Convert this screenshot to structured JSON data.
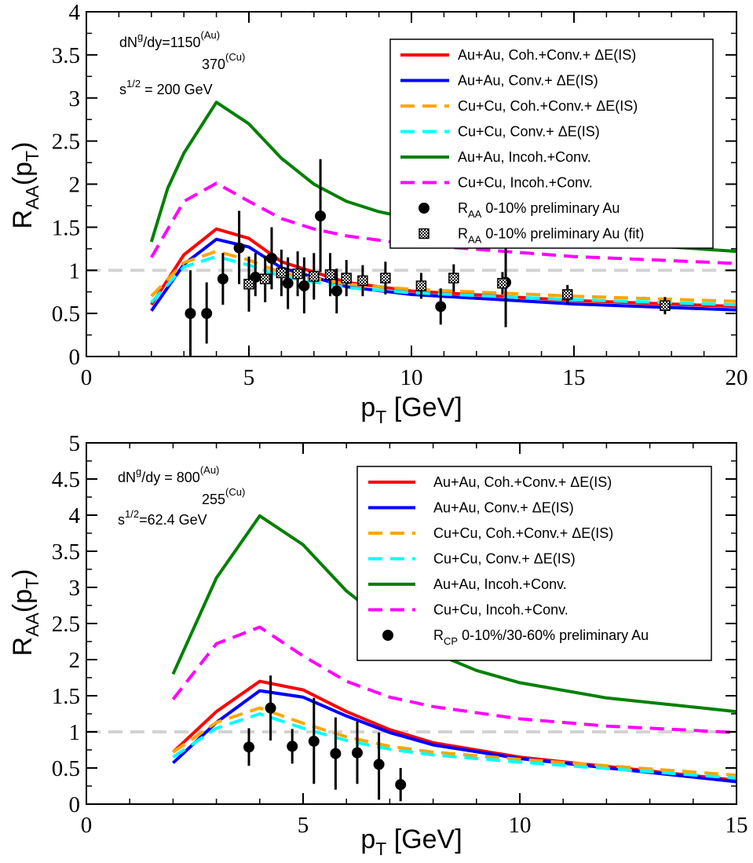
{
  "chart_data": [
    {
      "type": "line",
      "title": "",
      "xlabel": "p_T [GeV]",
      "ylabel": "R_AA(p_T)",
      "xlim": [
        0,
        20
      ],
      "ylim": [
        0,
        4
      ],
      "xticks": [
        "0",
        "5",
        "10",
        "15",
        "20"
      ],
      "yticks": [
        "0",
        "0.5",
        "1",
        "1.5",
        "2",
        "2.5",
        "3",
        "3.5",
        "4"
      ],
      "reference_line": 1,
      "annotations": {
        "dndy_prefix": "dN",
        "dndy_sup": "g",
        "dndy_mid": "/dy=1150",
        "dndy_au": "(Au)",
        "dndy_cu_value": "370",
        "dndy_cu": "(Cu)",
        "energy_prefix": "s",
        "energy_sup": "1/2",
        "energy_suffix": " = 200 GeV"
      },
      "series": [
        {
          "name": "Au+Au, Coh.+Conv.+ ΔE(IS)",
          "color": "#ff0000",
          "dash": "solid",
          "x": [
            2,
            3,
            4,
            5,
            6,
            8,
            10,
            15,
            20
          ],
          "y": [
            0.6,
            1.18,
            1.48,
            1.37,
            1.1,
            0.86,
            0.76,
            0.65,
            0.58
          ]
        },
        {
          "name": "Au+Au, Conv.+ ΔE(IS)",
          "color": "#0000ff",
          "dash": "solid",
          "x": [
            2,
            3,
            4,
            5,
            6,
            8,
            10,
            15,
            20
          ],
          "y": [
            0.53,
            1.07,
            1.36,
            1.27,
            1.03,
            0.81,
            0.72,
            0.61,
            0.54
          ]
        },
        {
          "name": "Cu+Cu, Coh.+Conv.+ ΔE(IS)",
          "color": "#ffa500",
          "dash": "dash",
          "x": [
            2,
            3,
            4,
            5,
            6,
            8,
            10,
            15,
            20
          ],
          "y": [
            0.7,
            1.09,
            1.22,
            1.12,
            0.97,
            0.84,
            0.78,
            0.7,
            0.64
          ]
        },
        {
          "name": "Cu+Cu, Conv.+ ΔE(IS)",
          "color": "#00ffff",
          "dash": "dash",
          "x": [
            2,
            3,
            4,
            5,
            6,
            8,
            10,
            15,
            20
          ],
          "y": [
            0.63,
            1.04,
            1.16,
            1.06,
            0.93,
            0.8,
            0.74,
            0.66,
            0.6
          ]
        },
        {
          "name": "Au+Au, Incoh.+Conv.",
          "color": "#008000",
          "dash": "solid",
          "x": [
            2,
            2.5,
            3,
            4,
            5,
            6,
            7,
            8,
            9,
            10,
            12,
            15,
            18,
            20
          ],
          "y": [
            1.33,
            1.95,
            2.36,
            2.95,
            2.7,
            2.3,
            2.0,
            1.8,
            1.68,
            1.6,
            1.48,
            1.36,
            1.27,
            1.22
          ]
        },
        {
          "name": "Cu+Cu, Incoh.+Conv.",
          "color": "#ff00ff",
          "dash": "dash",
          "x": [
            2,
            3,
            4,
            5,
            6,
            7,
            8,
            10,
            15,
            20
          ],
          "y": [
            1.15,
            1.8,
            2.01,
            1.8,
            1.6,
            1.48,
            1.4,
            1.3,
            1.16,
            1.08
          ]
        }
      ],
      "markers": [
        {
          "name": "R_AA 0-10% preliminary Au",
          "label_sub": "AA",
          "label_rest": " 0-10% preliminary Au",
          "style": "circle",
          "points": [
            {
              "x": 3.2,
              "y": 0.5,
              "lo": 0.0,
              "hi": 1.0
            },
            {
              "x": 3.7,
              "y": 0.5,
              "lo": 0.15,
              "hi": 0.86
            },
            {
              "x": 4.2,
              "y": 0.9,
              "lo": 0.6,
              "hi": 1.2
            },
            {
              "x": 4.7,
              "y": 1.26,
              "lo": 0.84,
              "hi": 1.69
            },
            {
              "x": 5.2,
              "y": 0.92,
              "lo": 0.7,
              "hi": 1.2
            },
            {
              "x": 5.7,
              "y": 1.14,
              "lo": 0.78,
              "hi": 1.5
            },
            {
              "x": 6.2,
              "y": 0.85,
              "lo": 0.55,
              "hi": 1.15
            },
            {
              "x": 6.7,
              "y": 0.82,
              "lo": 0.5,
              "hi": 1.15
            },
            {
              "x": 7.2,
              "y": 1.63,
              "lo": 0.98,
              "hi": 2.29
            },
            {
              "x": 7.7,
              "y": 0.76,
              "lo": 0.5,
              "hi": 1.02
            },
            {
              "x": 10.9,
              "y": 0.58,
              "lo": 0.37,
              "hi": 0.79
            },
            {
              "x": 12.9,
              "y": 0.86,
              "lo": 0.34,
              "hi": 1.38
            }
          ]
        },
        {
          "name": "R_AA 0-10% preliminary Au (fit)",
          "label_sub": "AA",
          "label_rest": " 0-10% preliminary Au (fit)",
          "style": "hatched-square",
          "points": [
            {
              "x": 5.0,
              "y": 0.84,
              "lo": 0.52,
              "hi": 1.16
            },
            {
              "x": 5.5,
              "y": 0.9,
              "lo": 0.63,
              "hi": 1.17
            },
            {
              "x": 6.0,
              "y": 0.97,
              "lo": 0.7,
              "hi": 1.24
            },
            {
              "x": 6.5,
              "y": 0.96,
              "lo": 0.7,
              "hi": 1.22
            },
            {
              "x": 7.0,
              "y": 0.93,
              "lo": 0.66,
              "hi": 1.2
            },
            {
              "x": 7.5,
              "y": 0.95,
              "lo": 0.7,
              "hi": 1.2
            },
            {
              "x": 8.0,
              "y": 0.91,
              "lo": 0.7,
              "hi": 1.12
            },
            {
              "x": 8.5,
              "y": 0.88,
              "lo": 0.7,
              "hi": 1.06
            },
            {
              "x": 9.2,
              "y": 0.91,
              "lo": 0.72,
              "hi": 1.1
            },
            {
              "x": 10.3,
              "y": 0.82,
              "lo": 0.67,
              "hi": 0.97
            },
            {
              "x": 11.3,
              "y": 0.91,
              "lo": 0.75,
              "hi": 1.07
            },
            {
              "x": 12.8,
              "y": 0.85,
              "lo": 0.72,
              "hi": 0.98
            },
            {
              "x": 14.8,
              "y": 0.72,
              "lo": 0.61,
              "hi": 0.83
            },
            {
              "x": 17.8,
              "y": 0.59,
              "lo": 0.49,
              "hi": 0.69
            }
          ]
        }
      ]
    },
    {
      "type": "line",
      "title": "",
      "xlabel": "p_T [GeV]",
      "ylabel": "R_AA(p_T)",
      "xlim": [
        0,
        15
      ],
      "ylim": [
        0,
        5
      ],
      "xticks": [
        "0",
        "5",
        "10",
        "15"
      ],
      "yticks": [
        "0",
        "0.5",
        "1",
        "1.5",
        "2",
        "2.5",
        "3",
        "3.5",
        "4",
        "4.5",
        "5"
      ],
      "reference_line": 1,
      "annotations": {
        "dndy_prefix": "dN",
        "dndy_sup": "g",
        "dndy_mid": "/dy = 800",
        "dndy_au": "(Au)",
        "dndy_cu_value": "255",
        "dndy_cu": "(Cu)",
        "energy_prefix": "s",
        "energy_sup": "1/2",
        "energy_suffix": "=62.4 GeV"
      },
      "series": [
        {
          "name": "Au+Au, Coh.+Conv.+ ΔE(IS)",
          "color": "#ff0000",
          "dash": "solid",
          "x": [
            2,
            3,
            4,
            5,
            6,
            7,
            8,
            10,
            15
          ],
          "y": [
            0.72,
            1.28,
            1.7,
            1.58,
            1.28,
            1.03,
            0.85,
            0.65,
            0.33
          ]
        },
        {
          "name": "Au+Au, Conv.+ ΔE(IS)",
          "color": "#0000ff",
          "dash": "solid",
          "x": [
            2,
            3,
            4,
            5,
            6,
            7,
            8,
            10,
            15
          ],
          "y": [
            0.57,
            1.13,
            1.57,
            1.48,
            1.22,
            0.99,
            0.82,
            0.63,
            0.31
          ]
        },
        {
          "name": "Cu+Cu, Coh.+Conv.+ ΔE(IS)",
          "color": "#ffa500",
          "dash": "dash",
          "x": [
            2,
            3,
            4,
            5,
            6,
            7,
            8,
            10,
            15
          ],
          "y": [
            0.72,
            1.13,
            1.33,
            1.12,
            0.93,
            0.8,
            0.72,
            0.62,
            0.4
          ]
        },
        {
          "name": "Cu+Cu, Conv.+ ΔE(IS)",
          "color": "#00ffff",
          "dash": "dash",
          "x": [
            2,
            3,
            4,
            5,
            6,
            7,
            8,
            10,
            15
          ],
          "y": [
            0.65,
            1.05,
            1.25,
            1.05,
            0.88,
            0.76,
            0.68,
            0.58,
            0.36
          ]
        },
        {
          "name": "Au+Au, Incoh.+Conv.",
          "color": "#008000",
          "dash": "solid",
          "x": [
            2,
            3,
            4,
            5,
            6,
            7,
            8,
            9,
            10,
            12,
            15
          ],
          "y": [
            1.8,
            3.13,
            3.99,
            3.59,
            2.95,
            2.48,
            2.1,
            1.85,
            1.68,
            1.47,
            1.28
          ]
        },
        {
          "name": "Cu+Cu, Incoh.+Conv.",
          "color": "#ff00ff",
          "dash": "dash",
          "x": [
            2,
            3,
            4,
            5,
            6,
            7,
            8,
            10,
            12,
            15
          ],
          "y": [
            1.45,
            2.22,
            2.45,
            2.05,
            1.7,
            1.48,
            1.35,
            1.18,
            1.08,
            0.99
          ]
        }
      ],
      "markers": [
        {
          "name": "R_CP 0-10%/30-60% preliminary Au",
          "label_sub": "CP",
          "label_rest": " 0-10%/30-60% preliminary Au",
          "style": "circle",
          "points": [
            {
              "x": 3.75,
              "y": 0.79,
              "lo": 0.53,
              "hi": 1.05
            },
            {
              "x": 4.25,
              "y": 1.33,
              "lo": 0.88,
              "hi": 1.78
            },
            {
              "x": 4.75,
              "y": 0.8,
              "lo": 0.56,
              "hi": 1.04
            },
            {
              "x": 5.25,
              "y": 0.87,
              "lo": 0.28,
              "hi": 1.47
            },
            {
              "x": 5.75,
              "y": 0.7,
              "lo": 0.2,
              "hi": 1.2
            },
            {
              "x": 6.25,
              "y": 0.71,
              "lo": 0.28,
              "hi": 1.14
            },
            {
              "x": 6.75,
              "y": 0.55,
              "lo": 0.06,
              "hi": 0.99
            },
            {
              "x": 7.25,
              "y": 0.27,
              "lo": 0.04,
              "hi": 0.5
            }
          ]
        }
      ]
    }
  ]
}
